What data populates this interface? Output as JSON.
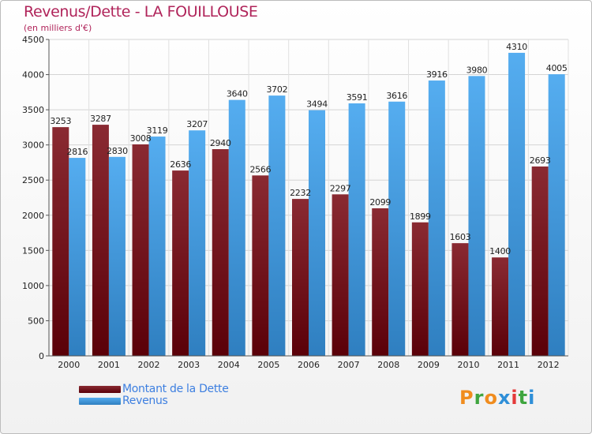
{
  "title": "Revenus/Dette - LA FOUILLOUSE",
  "subtitle": "(en milliers d'€)",
  "logo": {
    "text": "Proxiti",
    "colors": [
      "#f08c1e",
      "#3fa53f",
      "#f08c1e",
      "#2f8fd8",
      "#e43a3a",
      "#3fa53f",
      "#2f8fd8"
    ]
  },
  "chart_data": {
    "type": "bar",
    "categories": [
      "2000",
      "2001",
      "2002",
      "2003",
      "2004",
      "2005",
      "2006",
      "2007",
      "2008",
      "2009",
      "2010",
      "2011",
      "2012"
    ],
    "series": [
      {
        "name": "Montant de la Dette",
        "color": "#6b1018",
        "values": [
          3253,
          3287,
          3008,
          2636,
          2940,
          2566,
          2232,
          2297,
          2099,
          1899,
          1603,
          1400,
          2693
        ],
        "labels": [
          "3253",
          "3287",
          "3008",
          "2636",
          "2940",
          "2566",
          "2232",
          "2297",
          "2099",
          "1899",
          "1603",
          "1400",
          "2693"
        ]
      },
      {
        "name": "Revenus",
        "color": "#4aa3ec",
        "values": [
          2816,
          2830,
          3119,
          3207,
          3640,
          3702,
          3494,
          3591,
          3616,
          3916,
          3980,
          4310,
          4005
        ],
        "labels": [
          "2816",
          "2830",
          "3119",
          "3207",
          "3640",
          "3702",
          "3494",
          "3591",
          "3616",
          "3916",
          "3980",
          "4310",
          "4005"
        ]
      }
    ],
    "ylim": [
      0,
      4500
    ],
    "yticks": [
      0,
      500,
      1000,
      1500,
      2000,
      2500,
      3000,
      3500,
      4000,
      4500
    ],
    "ytick_labels": [
      "0",
      "500",
      "1000",
      "1500",
      "2000",
      "2500",
      "3000",
      "3500",
      "4000",
      "4500"
    ],
    "grid": true,
    "legend_position": "bottom-left"
  }
}
